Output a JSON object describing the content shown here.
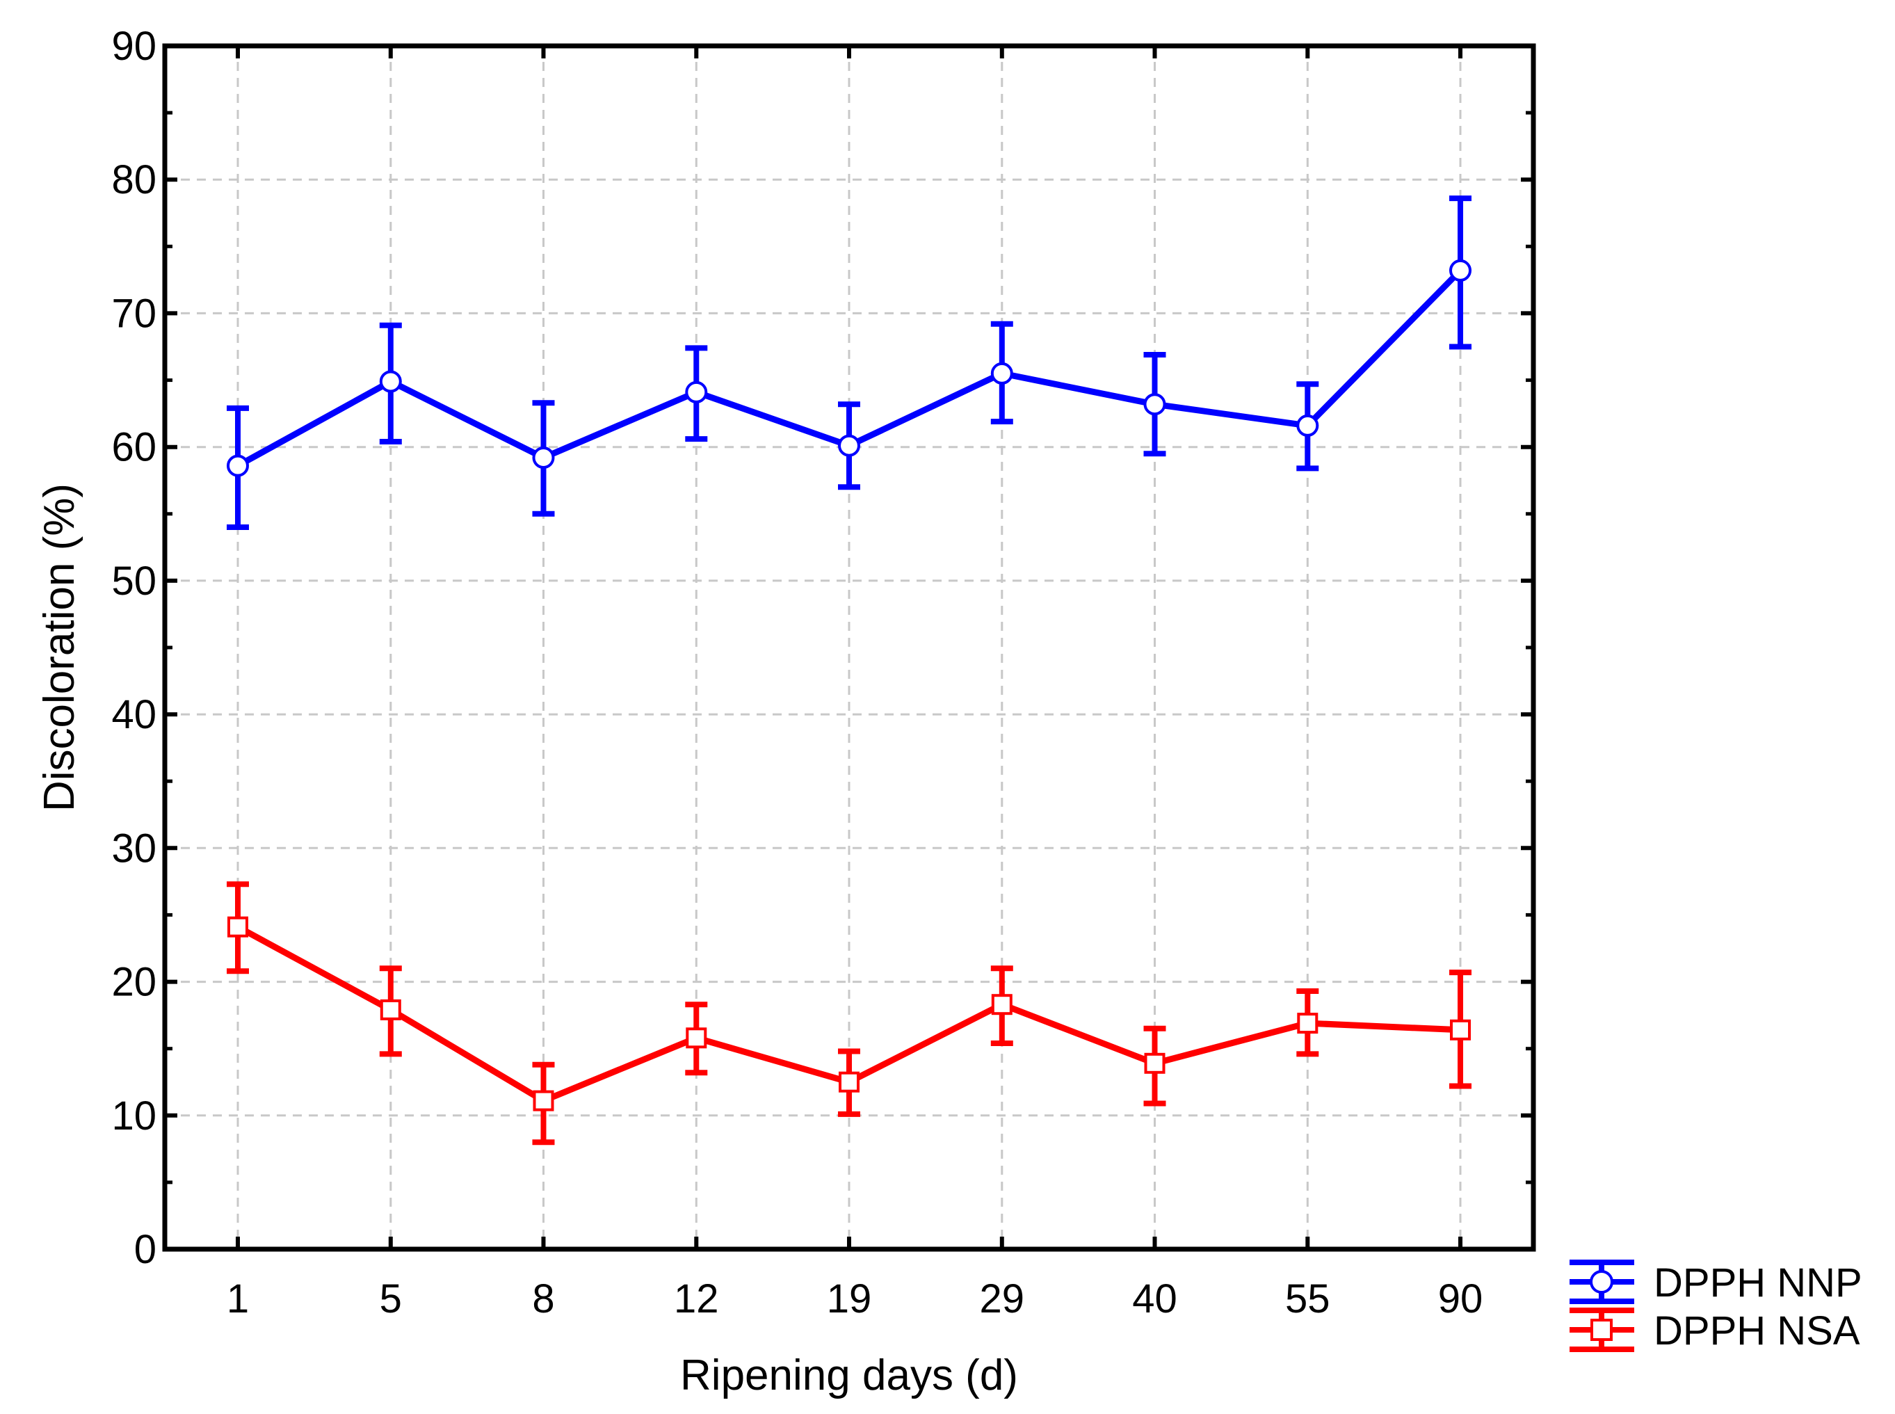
{
  "chart_data": {
    "type": "line",
    "title": "",
    "xlabel": "Ripening days (d)",
    "ylabel": "Discoloration (%)",
    "x_categories": [
      1,
      5,
      8,
      12,
      19,
      29,
      40,
      55,
      90
    ],
    "y_axis": {
      "min": 0,
      "max": 90,
      "major_step": 10,
      "minor_step": 5,
      "ticks": [
        0,
        10,
        20,
        30,
        40,
        50,
        60,
        70,
        80,
        90
      ]
    },
    "grid": "dashed",
    "grid_color": "#c8c8c8",
    "axis_color": "#000000",
    "background_color": "#ffffff",
    "legend_position": "bottom-right-outside",
    "series": [
      {
        "name": "DPPH NNP",
        "color": "#0000ff",
        "marker": "circle",
        "values": [
          58.6,
          64.9,
          59.2,
          64.1,
          60.1,
          65.5,
          63.2,
          61.6,
          73.2
        ],
        "err_low": [
          54.0,
          60.4,
          55.0,
          60.6,
          57.0,
          61.9,
          59.5,
          58.4,
          67.5
        ],
        "err_high": [
          62.9,
          69.1,
          63.3,
          67.4,
          63.2,
          69.2,
          66.9,
          64.7,
          78.6
        ]
      },
      {
        "name": "DPPH NSA",
        "color": "#ff0000",
        "marker": "square",
        "values": [
          24.1,
          17.9,
          11.1,
          15.8,
          12.5,
          18.3,
          13.9,
          16.9,
          16.4
        ],
        "err_low": [
          20.8,
          14.6,
          8.0,
          13.2,
          10.1,
          15.4,
          10.9,
          14.6,
          12.2
        ],
        "err_high": [
          27.3,
          21.0,
          13.8,
          18.3,
          14.8,
          21.0,
          16.5,
          19.3,
          20.7
        ]
      }
    ]
  }
}
